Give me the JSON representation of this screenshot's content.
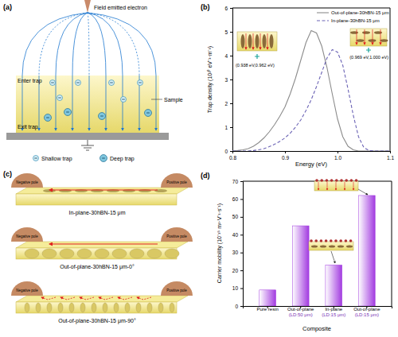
{
  "diagrams": {
    "a": {
      "label": "(a)",
      "electron": "Field emitted electron",
      "enter": "Enter trap",
      "exit": "Exit trap",
      "sample": "Sample",
      "shallow": "Shallow trap",
      "deep": "Deep trap"
    },
    "c": {
      "label": "(c)",
      "panels": [
        {
          "title": "In-plane-30hBN-15 μm",
          "negative": "Negative pole",
          "positive": "Positive pole"
        },
        {
          "title": "Out-of-plane-30hBN-15 μm-0°",
          "negative": "Negative pole",
          "positive": "Positive pole"
        },
        {
          "title": "Out-of-plane-30hBN-15 μm-90°",
          "negative": "Negative pole",
          "positive": "Positive pole"
        }
      ]
    }
  },
  "chart_data": [
    {
      "type": "line",
      "title": "(b)",
      "xlabel": "Energy (eV)",
      "ylabel": "Trap density (10²⁰ eV⁻¹·m⁻³)",
      "x": [
        0.8,
        0.81,
        0.82,
        0.83,
        0.84,
        0.85,
        0.86,
        0.87,
        0.88,
        0.89,
        0.9,
        0.91,
        0.92,
        0.93,
        0.94,
        0.95,
        0.96,
        0.97,
        0.98,
        0.99,
        1.0,
        1.01,
        1.02,
        1.03,
        1.04,
        1.05,
        1.06,
        1.07,
        1.08,
        1.09,
        1.1
      ],
      "series": [
        {
          "name": "Out-of-plane-30hBN-15 μm",
          "color": "#8c8c8c",
          "line_style": "solid",
          "values": [
            0,
            0.02,
            0.05,
            0.1,
            0.2,
            0.35,
            0.55,
            0.8,
            1.1,
            1.45,
            1.85,
            2.4,
            3.05,
            3.8,
            4.55,
            5.05,
            4.95,
            4.4,
            3.5,
            2.4,
            1.35,
            0.6,
            0.2,
            0.05,
            0,
            0,
            0,
            0,
            0,
            0,
            0
          ]
        },
        {
          "name": "In-plane-30hBN-15 μm",
          "color": "#6b63b5",
          "line_style": "dashed",
          "values": [
            0,
            0,
            0,
            0,
            0.02,
            0.05,
            0.1,
            0.18,
            0.28,
            0.4,
            0.55,
            0.75,
            1.0,
            1.3,
            1.7,
            2.15,
            2.7,
            3.3,
            3.9,
            4.25,
            4.15,
            3.6,
            2.6,
            1.5,
            0.6,
            0.15,
            0.02,
            0,
            0,
            0,
            0
          ]
        }
      ],
      "xlim": [
        0.8,
        1.1
      ],
      "xticks": [
        0.8,
        0.9,
        {
          "value": 1,
          "label": "1.0"
        },
        1.1
      ],
      "ylim": [
        0,
        6
      ],
      "yticks": [
        0,
        1,
        2,
        3,
        4,
        5,
        6
      ],
      "legend": "upper right",
      "annotations": [
        "(0.938 eV,0.962 eV)",
        "(0.969 eV,1.000 eV)"
      ]
    },
    {
      "type": "bar",
      "title": "(d)",
      "xlabel": "Composite",
      "ylabel": "Carrier mobility (10⁻¹⁵ m²·V⁻¹·s⁻¹)",
      "categories": [
        "Pure resin",
        "Out-of-plane\n(LD:50 μm)",
        "In-plane\n(LD:15 μm)",
        "Out-of-plane\n(LD:15 μm)"
      ],
      "values": [
        9,
        45,
        23,
        62
      ],
      "color": "#a23be0",
      "ylim": [
        0,
        70
      ],
      "yticks": [
        0,
        10,
        20,
        30,
        40,
        50,
        60,
        70
      ]
    }
  ]
}
